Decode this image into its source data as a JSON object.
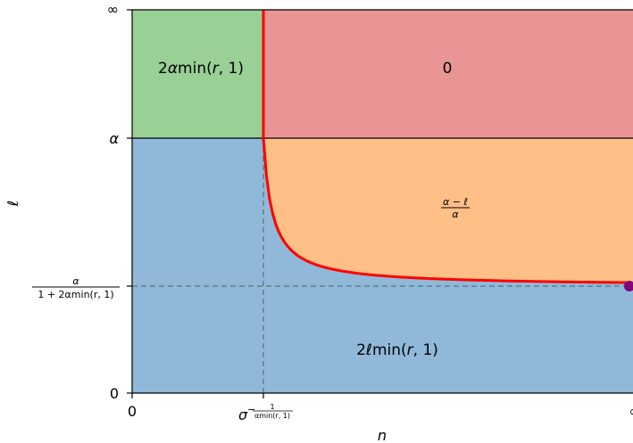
{
  "regions": {
    "top_left": {
      "label_prefix": "2",
      "label_sym": "α",
      "label_func": "min(",
      "label_var": "r",
      "label_suffix": ", 1)",
      "color": "#98d095"
    },
    "top_right": {
      "label": "0",
      "color": "#ea9595"
    },
    "middle_right": {
      "numerator": "α − ℓ",
      "denominator": "α",
      "color": "#ffbf87"
    },
    "bottom": {
      "label_prefix": "2",
      "label_sym": "ℓ",
      "label_func": "min(",
      "label_var": "r",
      "label_suffix": ", 1)",
      "color": "#90b9d9"
    }
  },
  "axes": {
    "x_label": "n",
    "y_label": "ℓ",
    "x_ticks": {
      "zero": "0",
      "sigma_base": "σ",
      "sigma_exp_minus": "−",
      "sigma_exp_num": "1",
      "sigma_exp_den": "αmin(r, 1)",
      "right_edge": "∞"
    },
    "y_ticks": {
      "infinity": "∞",
      "alpha": "α",
      "threshold_num": "α",
      "threshold_den": "1 + 2αmin(r, 1)",
      "zero": "0"
    }
  },
  "colors": {
    "boundary": "#ff0000",
    "point": "#800080",
    "dashed": "#5f7f8f"
  }
}
